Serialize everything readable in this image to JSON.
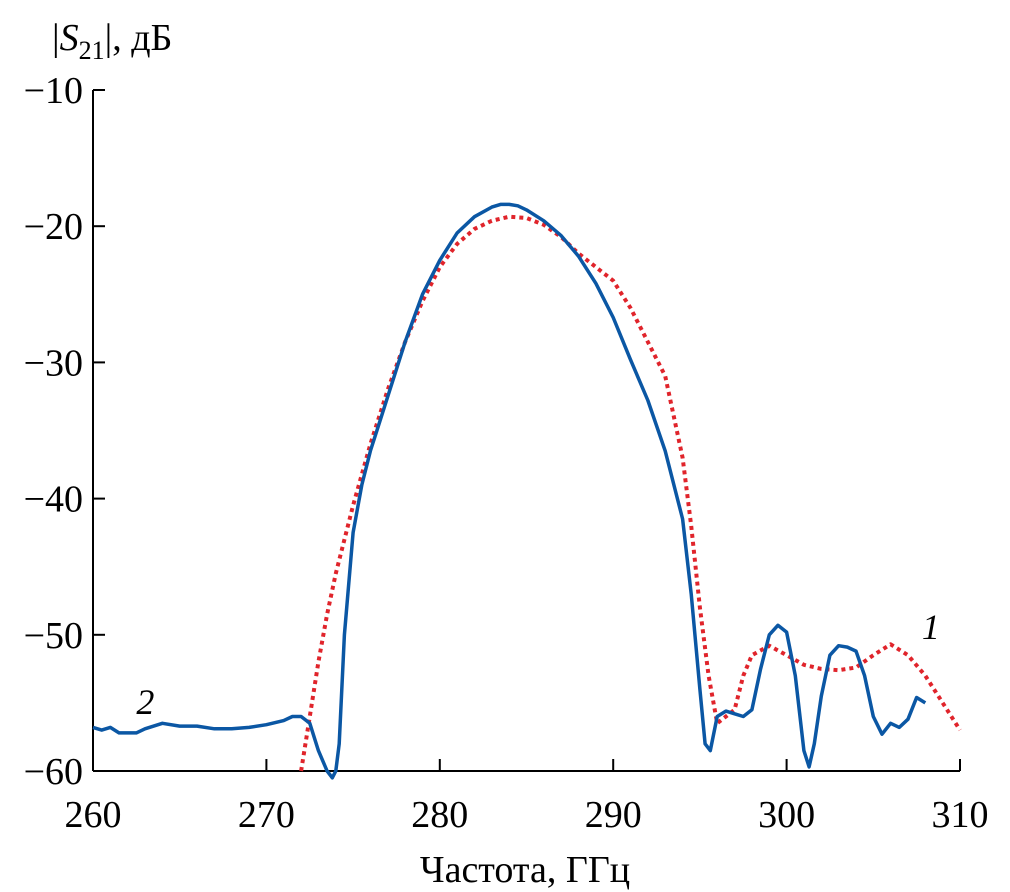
{
  "chart_data": {
    "type": "line",
    "xlabel": "Частота, ГГц",
    "ylabel": {
      "prefix": "|",
      "var": "S",
      "sub": "21",
      "suffix": "|, дБ"
    },
    "xlim": [
      260,
      310
    ],
    "ylim": [
      -60,
      -10
    ],
    "xticks": [
      260,
      270,
      280,
      290,
      300,
      310
    ],
    "yticks": [
      -60,
      -50,
      -40,
      -30,
      -20,
      -10
    ],
    "yticklabels": [
      "−60",
      "−50",
      "−40",
      "−30",
      "−20",
      "−10"
    ],
    "grid": false,
    "series": [
      {
        "label": "1",
        "color": "#e0242b",
        "style": "dotted",
        "label_at": [
          307.8,
          -50.3
        ],
        "x": [
          272.0,
          272.5,
          273.0,
          273.5,
          274.0,
          275.0,
          276.0,
          277.0,
          278.0,
          279.0,
          280.0,
          281.0,
          282.0,
          283.0,
          284.0,
          285.0,
          286.0,
          287.0,
          288.0,
          289.0,
          290.0,
          291.0,
          292.0,
          293.0,
          294.0,
          294.5,
          295.0,
          295.5,
          296.0,
          296.5,
          297.0,
          297.5,
          298.0,
          299.0,
          300.0,
          301.0,
          302.0,
          303.0,
          304.0,
          305.0,
          306.0,
          307.0,
          308.0,
          309.0,
          310.0
        ],
        "y": [
          -60.0,
          -56.0,
          -52.0,
          -48.5,
          -45.5,
          -40.5,
          -36.0,
          -32.0,
          -28.5,
          -25.5,
          -23.0,
          -21.3,
          -20.2,
          -19.6,
          -19.3,
          -19.4,
          -19.9,
          -20.8,
          -22.0,
          -23.0,
          -24.0,
          -26.0,
          -28.5,
          -31.0,
          -37.0,
          -42.0,
          -48.0,
          -53.0,
          -56.5,
          -56.0,
          -55.5,
          -53.0,
          -51.5,
          -50.8,
          -51.5,
          -52.2,
          -52.5,
          -52.6,
          -52.4,
          -51.5,
          -50.7,
          -51.5,
          -53.0,
          -55.0,
          -57.0
        ]
      },
      {
        "label": "2",
        "color": "#0b57a4",
        "style": "solid",
        "label_at": [
          262.5,
          -55.8
        ],
        "x": [
          260.0,
          260.5,
          261.0,
          261.5,
          262.0,
          262.5,
          263.0,
          264.0,
          265.0,
          266.0,
          267.0,
          268.0,
          269.0,
          270.0,
          271.0,
          271.5,
          272.0,
          272.5,
          273.0,
          273.5,
          273.8,
          274.0,
          274.2,
          274.5,
          275.0,
          275.5,
          276.0,
          277.0,
          278.0,
          279.0,
          280.0,
          281.0,
          282.0,
          283.0,
          283.5,
          284.0,
          284.5,
          285.0,
          286.0,
          287.0,
          288.0,
          289.0,
          290.0,
          291.0,
          292.0,
          293.0,
          294.0,
          294.5,
          295.0,
          295.3,
          295.6,
          296.0,
          296.5,
          297.0,
          297.5,
          298.0,
          298.5,
          299.0,
          299.5,
          300.0,
          300.5,
          301.0,
          301.3,
          301.6,
          302.0,
          302.5,
          303.0,
          303.5,
          304.0,
          304.5,
          305.0,
          305.5,
          306.0,
          306.5,
          307.0,
          307.5,
          308.0
        ],
        "y": [
          -56.8,
          -57.0,
          -56.8,
          -57.2,
          -57.2,
          -57.2,
          -56.9,
          -56.5,
          -56.7,
          -56.7,
          -56.9,
          -56.9,
          -56.8,
          -56.6,
          -56.3,
          -56.0,
          -56.0,
          -56.5,
          -58.5,
          -60.0,
          -60.5,
          -60.0,
          -58.0,
          -50.0,
          -42.5,
          -39.0,
          -36.5,
          -32.5,
          -28.5,
          -25.0,
          -22.5,
          -20.5,
          -19.3,
          -18.6,
          -18.4,
          -18.4,
          -18.5,
          -18.8,
          -19.6,
          -20.7,
          -22.2,
          -24.2,
          -26.7,
          -29.8,
          -32.8,
          -36.5,
          -41.5,
          -47.0,
          -54.0,
          -58.0,
          -58.5,
          -56.0,
          -55.6,
          -55.8,
          -56.0,
          -55.5,
          -52.5,
          -50.0,
          -49.3,
          -49.8,
          -53.0,
          -58.5,
          -59.7,
          -58.0,
          -54.5,
          -51.5,
          -50.8,
          -50.9,
          -51.2,
          -53.0,
          -56.0,
          -57.3,
          -56.5,
          -56.8,
          -56.2,
          -54.6,
          -55.0
        ]
      }
    ]
  }
}
